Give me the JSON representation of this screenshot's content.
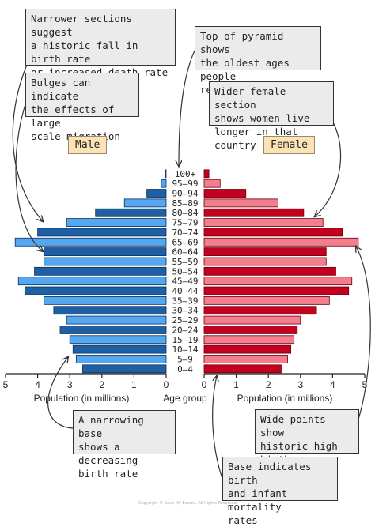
{
  "chart_data": {
    "type": "bar",
    "orientation": "horizontal",
    "subtype": "population-pyramid",
    "categories": [
      "0–4",
      "5–9",
      "10–14",
      "15–19",
      "20–24",
      "25–29",
      "30–34",
      "35–39",
      "40–44",
      "45–49",
      "50–54",
      "55–59",
      "60–64",
      "65–69",
      "70–74",
      "75–79",
      "80–84",
      "85–89",
      "90–94",
      "95–99",
      "100+"
    ],
    "series": [
      {
        "name": "Male",
        "values": [
          2.6,
          2.8,
          2.9,
          3.0,
          3.3,
          3.1,
          3.5,
          3.8,
          4.4,
          4.6,
          4.1,
          3.8,
          3.8,
          4.7,
          4.0,
          3.1,
          2.2,
          1.3,
          0.6,
          0.15,
          0.03
        ]
      },
      {
        "name": "Female",
        "values": [
          2.4,
          2.6,
          2.7,
          2.8,
          2.9,
          3.0,
          3.5,
          3.9,
          4.5,
          4.6,
          4.1,
          3.8,
          3.8,
          4.8,
          4.3,
          3.7,
          3.1,
          2.3,
          1.3,
          0.5,
          0.15
        ]
      }
    ],
    "xlabel_left": "Population (in millions)",
    "xlabel_center": "Age group",
    "xlabel_right": "Population (in millions)",
    "xlim": [
      0,
      5
    ],
    "ticks": [
      "0",
      "1",
      "2",
      "3",
      "4",
      "5"
    ],
    "colors": {
      "male_dark": "#1f5fa3",
      "male_light": "#55a8f0",
      "female_dark": "#c4001f",
      "female_light": "#f27e8e",
      "male_label_bg": "#fbe3b6",
      "female_label_bg": "#fbe3b6"
    }
  },
  "labels": {
    "male": "Male",
    "female": "Female"
  },
  "callouts": [
    {
      "id": "narrower",
      "text": "Narrower sections suggest\na historic fall in birth rate\nor increased death rate due\nto war or disaster"
    },
    {
      "id": "top",
      "text": "Top of pyramid shows\nthe oldest ages people\nreach"
    },
    {
      "id": "bulges",
      "text": "Bulges can indicate\nthe effects of large\nscale migration"
    },
    {
      "id": "wider",
      "text": "Wider female section\nshows women live\nlonger in that country"
    },
    {
      "id": "narrowing-base",
      "text": "A narrowing base\nshows a decreasing\nbirth rate"
    },
    {
      "id": "wide-points",
      "text": "Wide points show\nhistoric high birth\nrates"
    },
    {
      "id": "base-indicates",
      "text": "Base indicates birth\nand infant mortality\nrates"
    }
  ],
  "copyright": "Copyright © Save My Exams. All Rights Reserved"
}
